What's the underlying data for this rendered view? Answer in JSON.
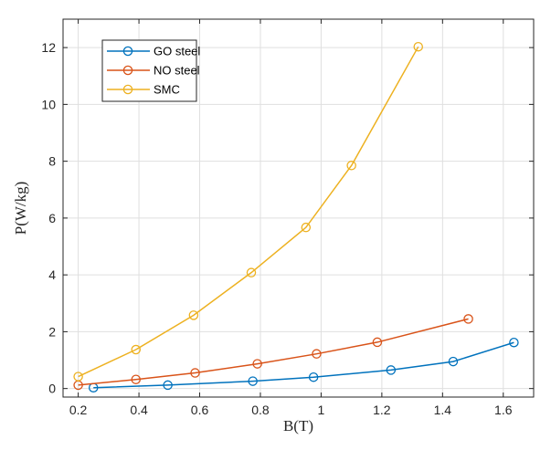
{
  "chart_data": {
    "type": "line",
    "title": "",
    "xlabel": "B(T)",
    "ylabel": "P(W/kg)",
    "xlim": [
      0.15,
      1.7
    ],
    "ylim": [
      -0.3,
      13
    ],
    "xticks": [
      0.2,
      0.4,
      0.6,
      0.8,
      1,
      1.2,
      1.4,
      1.6
    ],
    "xtick_labels": [
      "0.2",
      "0.4",
      "0.6",
      "0.8",
      "1",
      "1.2",
      "1.4",
      "1.6"
    ],
    "yticks": [
      0,
      2,
      4,
      6,
      8,
      10,
      12
    ],
    "ytick_labels": [
      "0",
      "2",
      "4",
      "6",
      "8",
      "10",
      "12"
    ],
    "grid": true,
    "legend_position": "top-left",
    "series": [
      {
        "name": "GO steel",
        "color": "#0072BD",
        "x": [
          0.25,
          0.495,
          0.775,
          0.975,
          1.23,
          1.435,
          1.635
        ],
        "y": [
          0.03,
          0.12,
          0.26,
          0.4,
          0.65,
          0.95,
          1.62
        ]
      },
      {
        "name": "NO steel",
        "color": "#D95319",
        "x": [
          0.2,
          0.39,
          0.585,
          0.79,
          0.985,
          1.185,
          1.485
        ],
        "y": [
          0.12,
          0.32,
          0.55,
          0.87,
          1.22,
          1.63,
          2.45
        ]
      },
      {
        "name": "SMC",
        "color": "#EDB120",
        "x": [
          0.2,
          0.39,
          0.58,
          0.77,
          0.95,
          1.1,
          1.32
        ],
        "y": [
          0.42,
          1.37,
          2.58,
          4.08,
          5.67,
          7.85,
          12.03
        ]
      }
    ]
  }
}
